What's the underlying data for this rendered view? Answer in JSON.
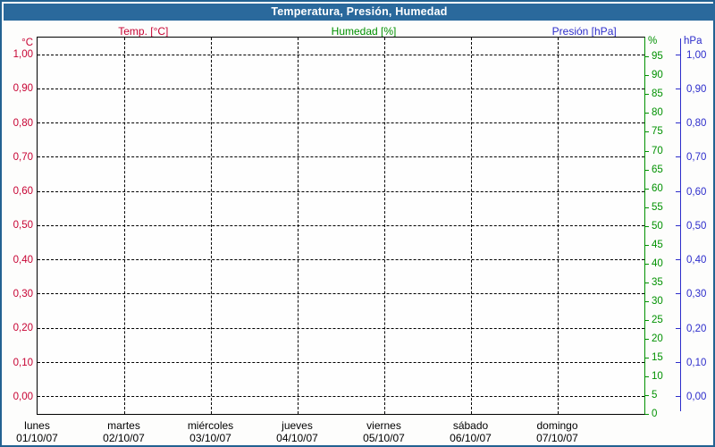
{
  "window": {
    "title": "Temperatura, Presión, Humedad"
  },
  "legend": [
    {
      "label": "Temp. [°C]",
      "color": "#c70333"
    },
    {
      "label": "Humedad [%]",
      "color": "#009100"
    },
    {
      "label": "Presión [hPa]",
      "color": "#2d2dcb"
    }
  ],
  "axes": {
    "left": {
      "unit": "°C",
      "ticks": [
        "1,00",
        "0,90",
        "0,80",
        "0,70",
        "0,60",
        "0,50",
        "0,40",
        "0,30",
        "0,20",
        "0,10",
        "0,00"
      ]
    },
    "humidity": {
      "unit": "%",
      "ticks": [
        "95",
        "90",
        "85",
        "80",
        "75",
        "70",
        "65",
        "60",
        "55",
        "50",
        "45",
        "40",
        "35",
        "30",
        "25",
        "20",
        "15",
        "10",
        "5",
        "0"
      ]
    },
    "pressure": {
      "unit": "hPa",
      "ticks": [
        "1,00",
        "0,90",
        "0,80",
        "0,70",
        "0,60",
        "0,50",
        "0,40",
        "0,30",
        "0,20",
        "0,10",
        "0,00"
      ]
    },
    "x": {
      "days": [
        {
          "name": "lunes",
          "date": "01/10/07"
        },
        {
          "name": "martes",
          "date": "02/10/07"
        },
        {
          "name": "miércoles",
          "date": "03/10/07"
        },
        {
          "name": "jueves",
          "date": "04/10/07"
        },
        {
          "name": "viernes",
          "date": "05/10/07"
        },
        {
          "name": "sábado",
          "date": "06/10/07"
        },
        {
          "name": "domingo",
          "date": "07/10/07"
        }
      ]
    }
  },
  "colors": {
    "temperature": "#c70333",
    "humidity": "#009100",
    "pressure": "#2d2dcb",
    "titlebar": "#2a699c",
    "frame_border": "#236292",
    "grid": "#000000"
  },
  "chart_data": {
    "type": "line",
    "title": "Temperatura, Presión, Humedad",
    "x_categories": [
      "lunes 01/10/07",
      "martes 02/10/07",
      "miércoles 03/10/07",
      "jueves 04/10/07",
      "viernes 05/10/07",
      "sábado 06/10/07",
      "domingo 07/10/07"
    ],
    "series": [
      {
        "name": "Temp. [°C]",
        "axis": "left",
        "color": "#c70333",
        "values": []
      },
      {
        "name": "Humedad [%]",
        "axis": "right_inner",
        "color": "#009100",
        "values": []
      },
      {
        "name": "Presión [hPa]",
        "axis": "right_outer",
        "color": "#2d2dcb",
        "values": []
      }
    ],
    "axes": {
      "left": {
        "label": "°C",
        "range": [
          0.0,
          1.0
        ],
        "tick_step": 0.1
      },
      "right_inner": {
        "label": "%",
        "range": [
          0,
          100
        ],
        "tick_step": 5
      },
      "right_outer": {
        "label": "hPa",
        "range": [
          0.0,
          1.0
        ],
        "tick_step": 0.1
      }
    },
    "grid": true,
    "legend_position": "top",
    "plotted_points": "none - chart area is empty"
  }
}
